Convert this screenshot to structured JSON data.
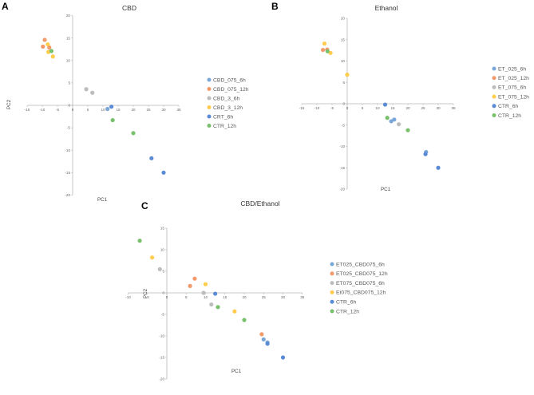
{
  "colors": {
    "blue": "#7aa7d8",
    "orange": "#f29a6c",
    "gray": "#bdbdbd",
    "yellow": "#ffcc4d",
    "darkblue": "#5b8bd4",
    "green": "#78c06b"
  },
  "chart_data": [
    {
      "panel": "A",
      "type": "scatter",
      "title": "CBD",
      "xlabel": "PC1",
      "ylabel": "PC2",
      "xlim": [
        -15,
        35
      ],
      "ylim": [
        -20,
        20
      ],
      "xticks": [
        -15,
        -10,
        -5,
        0,
        5,
        10,
        15,
        20,
        25,
        30,
        35
      ],
      "yticks": [
        -20,
        -15,
        -10,
        -5,
        0,
        5,
        10,
        15,
        20
      ],
      "series": [
        {
          "name": "CBD_075_6h",
          "color": "blue",
          "points": [
            [
              11.5,
              -0.8
            ]
          ]
        },
        {
          "name": "CBD_075_12h",
          "color": "orange",
          "points": [
            [
              -9.2,
              14.6
            ],
            [
              -9.8,
              13.1
            ],
            [
              -7.7,
              12.9
            ]
          ]
        },
        {
          "name": "CBD_3_6h",
          "color": "gray",
          "points": [
            [
              4.5,
              3.6
            ],
            [
              6.5,
              2.8
            ]
          ]
        },
        {
          "name": "CBD_3_12h",
          "color": "yellow",
          "points": [
            [
              -8.2,
              13.6
            ],
            [
              -8.0,
              11.9
            ],
            [
              -6.5,
              10.9
            ]
          ]
        },
        {
          "name": "CRT_6h",
          "color": "darkblue",
          "points": [
            [
              12.8,
              -0.3
            ],
            [
              26.0,
              -11.8
            ],
            [
              30.0,
              -15.0
            ]
          ]
        },
        {
          "name": "CTR_12h",
          "color": "green",
          "points": [
            [
              -7.0,
              12.1
            ],
            [
              13.2,
              -3.3
            ],
            [
              20.0,
              -6.2
            ]
          ]
        }
      ]
    },
    {
      "panel": "B",
      "type": "scatter",
      "title": "Ethanol",
      "xlabel": "PC1",
      "ylabel": "",
      "xlim": [
        -15,
        35
      ],
      "ylim": [
        -20,
        20
      ],
      "xticks": [
        -15,
        -10,
        -5,
        0,
        5,
        10,
        15,
        20,
        25,
        30,
        35
      ],
      "yticks": [
        -20,
        -15,
        -10,
        -5,
        0,
        5,
        10,
        15,
        20
      ],
      "series": [
        {
          "name": "ET_025_6h",
          "color": "blue",
          "points": [
            [
              14.5,
              -4.1
            ],
            [
              15.5,
              -3.7
            ],
            [
              26.0,
              -11.3
            ]
          ]
        },
        {
          "name": "ET_025_12h",
          "color": "orange",
          "points": [
            [
              -8.0,
              12.6
            ],
            [
              -6.6,
              12.7
            ]
          ]
        },
        {
          "name": "ET_075_6h",
          "color": "gray",
          "points": [
            [
              17.0,
              -4.8
            ]
          ]
        },
        {
          "name": "ET_075_12h",
          "color": "yellow",
          "points": [
            [
              -7.5,
              14.1
            ],
            [
              -5.5,
              11.9
            ],
            [
              0.0,
              6.8
            ]
          ]
        },
        {
          "name": "CTR_6h",
          "color": "darkblue",
          "points": [
            [
              12.5,
              -0.2
            ],
            [
              25.8,
              -11.8
            ],
            [
              30.0,
              -15.0
            ]
          ]
        },
        {
          "name": "CTR_12h",
          "color": "green",
          "points": [
            [
              -6.5,
              12.3
            ],
            [
              13.2,
              -3.3
            ],
            [
              20.0,
              -6.2
            ]
          ]
        }
      ]
    },
    {
      "panel": "C",
      "type": "scatter",
      "title": "CBD/Ethanol",
      "xlabel": "PC1",
      "ylabel": "PC2",
      "xlim": [
        -10,
        35
      ],
      "ylim": [
        -20,
        15
      ],
      "xticks": [
        -10,
        -5,
        0,
        5,
        10,
        15,
        20,
        25,
        30,
        35
      ],
      "yticks": [
        -20,
        -15,
        -10,
        -5,
        0,
        5,
        10,
        15
      ],
      "series": [
        {
          "name": "ET025_CBD075_6h",
          "color": "blue",
          "points": [
            [
              25.0,
              -10.8
            ],
            [
              26.0,
              -11.5
            ]
          ]
        },
        {
          "name": "ET025_CBD075_12h",
          "color": "orange",
          "points": [
            [
              6.0,
              1.6
            ],
            [
              7.2,
              3.3
            ],
            [
              24.5,
              -9.6
            ]
          ]
        },
        {
          "name": "ET075_CBD075_6h",
          "color": "gray",
          "points": [
            [
              -1.8,
              5.5
            ],
            [
              9.5,
              0.0
            ],
            [
              11.5,
              -2.7
            ]
          ]
        },
        {
          "name": "Et075_CBD075_12h",
          "color": "yellow",
          "points": [
            [
              -3.8,
              8.2
            ],
            [
              10.0,
              2.0
            ],
            [
              17.5,
              -4.3
            ]
          ]
        },
        {
          "name": "CTR_6h",
          "color": "darkblue",
          "points": [
            [
              12.5,
              -0.2
            ],
            [
              26.0,
              -11.8
            ],
            [
              30.0,
              -15.0
            ]
          ]
        },
        {
          "name": "CTR_12h",
          "color": "green",
          "points": [
            [
              -7.0,
              12.1
            ],
            [
              13.2,
              -3.3
            ],
            [
              20.0,
              -6.3
            ]
          ]
        }
      ]
    }
  ]
}
